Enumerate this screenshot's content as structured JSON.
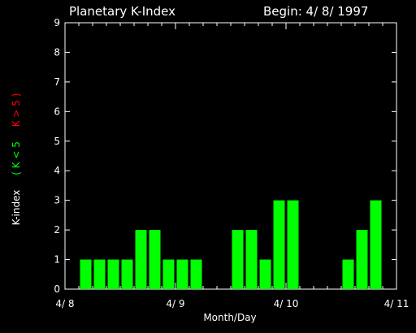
{
  "chart_data": {
    "type": "bar",
    "title": "Planetary K-Index",
    "begin_label": "Begin: 4/ 8/ 1997",
    "xlabel": "Month/Day",
    "ylabel": {
      "main": "K-index",
      "low_legend": "( K < 5",
      "high_legend": "K > 5 )"
    },
    "ylim": [
      0,
      9
    ],
    "yticks": [
      "0",
      "1",
      "2",
      "3",
      "4",
      "5",
      "6",
      "7",
      "8",
      "9"
    ],
    "xlim": [
      0,
      3
    ],
    "xticks": [
      {
        "pos": 0,
        "label": "4/ 8"
      },
      {
        "pos": 1,
        "label": "4/ 9"
      },
      {
        "pos": 2,
        "label": "4/ 10"
      },
      {
        "pos": 3,
        "label": "4/ 11"
      }
    ],
    "intervals_per_day": 8,
    "values": [
      0,
      1,
      1,
      1,
      1,
      2,
      2,
      1,
      1,
      1,
      0,
      0,
      2,
      2,
      1,
      3,
      3,
      0,
      0,
      0,
      1,
      2,
      3,
      0
    ],
    "colors": {
      "background": "#000000",
      "axes": "#ffffff",
      "bar_low": "#00ff00",
      "bar_high": "#ff0000",
      "legend_low": "#00ff00",
      "legend_high": "#ff0000"
    }
  }
}
